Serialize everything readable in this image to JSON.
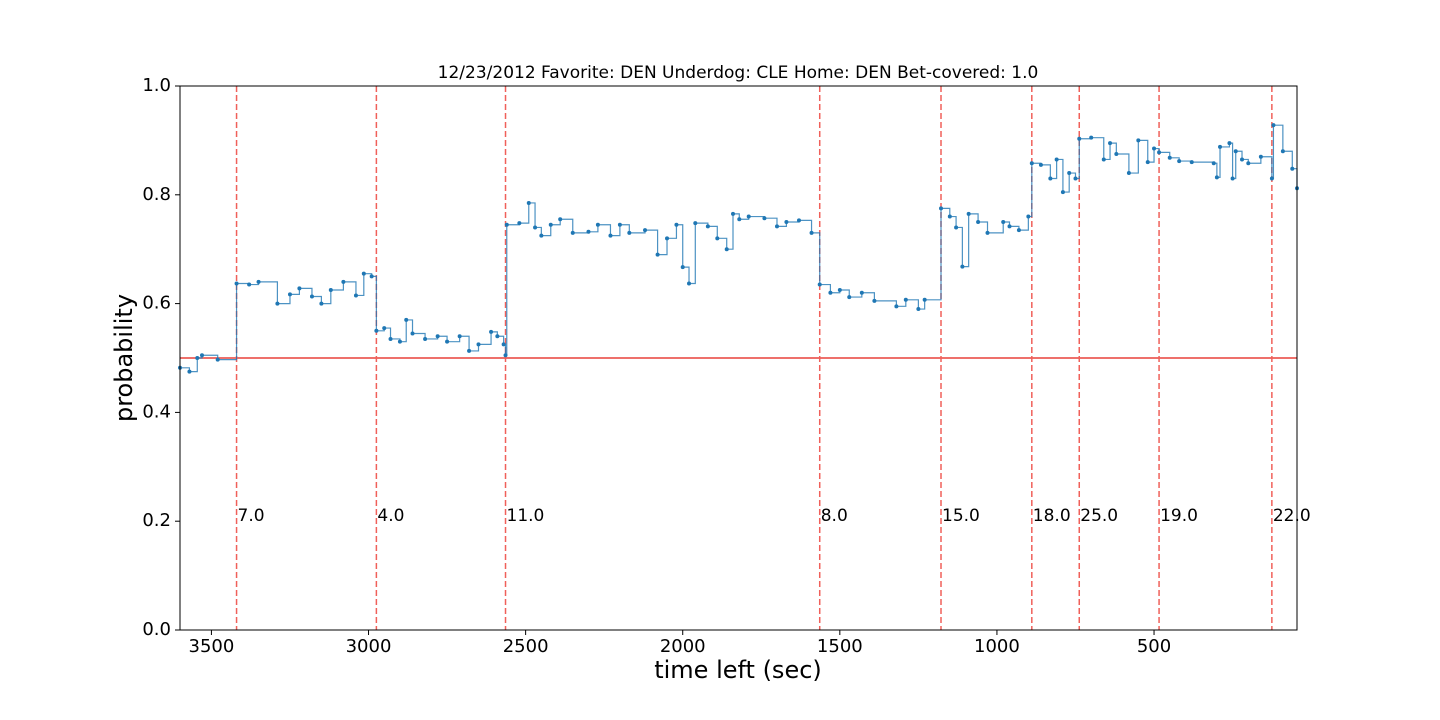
{
  "chart_data": {
    "type": "line",
    "title": "12/23/2012 Favorite: DEN Underdog: CLE Home: DEN Bet-covered: 1.0",
    "x_label": "time left (sec)",
    "y_label": "probability",
    "xlim": [
      3600,
      45
    ],
    "ylim": [
      0,
      1
    ],
    "xticks": [
      3500,
      3000,
      2500,
      2000,
      1500,
      1000,
      500
    ],
    "yticks": [
      {
        "value": 0,
        "label": "0.0"
      },
      {
        "value": 0.2,
        "label": "0.2"
      },
      {
        "value": 0.4,
        "label": "0.4"
      },
      {
        "value": 0.6,
        "label": "0.6"
      },
      {
        "value": 0.8,
        "label": "0.8"
      },
      {
        "value": 1,
        "label": "1.0"
      }
    ],
    "threshold": 0.5,
    "threshold_color": "#e8413a",
    "event_color": "#f0605a",
    "events": [
      {
        "x": 3420,
        "label": "7.0"
      },
      {
        "x": 2975,
        "label": "4.0"
      },
      {
        "x": 2564,
        "label": "11.0"
      },
      {
        "x": 1564,
        "label": "8.0"
      },
      {
        "x": 1178,
        "label": "15.0"
      },
      {
        "x": 889,
        "label": "18.0"
      },
      {
        "x": 738,
        "label": "25.0"
      },
      {
        "x": 484,
        "label": "19.0"
      },
      {
        "x": 125,
        "label": "22.0"
      }
    ],
    "series": [
      {
        "color": "#1f77b4",
        "x": [
          3600,
          3570,
          3545,
          3530,
          3480,
          3420,
          3380,
          3350,
          3290,
          3250,
          3220,
          3180,
          3150,
          3120,
          3080,
          3040,
          3015,
          2990,
          2975,
          2950,
          2930,
          2900,
          2880,
          2860,
          2820,
          2780,
          2750,
          2710,
          2680,
          2650,
          2610,
          2590,
          2570,
          2564,
          2560,
          2520,
          2490,
          2470,
          2450,
          2420,
          2390,
          2350,
          2300,
          2270,
          2230,
          2200,
          2170,
          2120,
          2080,
          2050,
          2020,
          2000,
          1980,
          1960,
          1920,
          1890,
          1860,
          1840,
          1820,
          1790,
          1740,
          1700,
          1670,
          1630,
          1590,
          1564,
          1530,
          1500,
          1470,
          1430,
          1390,
          1320,
          1290,
          1250,
          1230,
          1178,
          1150,
          1130,
          1110,
          1090,
          1060,
          1030,
          980,
          960,
          930,
          900,
          889,
          860,
          830,
          810,
          790,
          770,
          750,
          738,
          700,
          660,
          640,
          620,
          580,
          550,
          520,
          500,
          484,
          450,
          420,
          380,
          310,
          300,
          290,
          260,
          250,
          240,
          220,
          200,
          160,
          125,
          120,
          90,
          60,
          45
        ],
        "values": [
          0.482,
          0.475,
          0.5,
          0.505,
          0.497,
          0.637,
          0.635,
          0.64,
          0.6,
          0.617,
          0.628,
          0.613,
          0.6,
          0.625,
          0.64,
          0.615,
          0.655,
          0.65,
          0.55,
          0.555,
          0.535,
          0.53,
          0.57,
          0.545,
          0.535,
          0.54,
          0.53,
          0.54,
          0.513,
          0.525,
          0.548,
          0.54,
          0.525,
          0.505,
          0.745,
          0.748,
          0.785,
          0.74,
          0.725,
          0.745,
          0.755,
          0.73,
          0.732,
          0.745,
          0.725,
          0.745,
          0.73,
          0.735,
          0.69,
          0.72,
          0.745,
          0.667,
          0.637,
          0.748,
          0.742,
          0.72,
          0.7,
          0.765,
          0.755,
          0.76,
          0.757,
          0.742,
          0.75,
          0.753,
          0.73,
          0.635,
          0.62,
          0.625,
          0.612,
          0.62,
          0.605,
          0.595,
          0.607,
          0.59,
          0.607,
          0.775,
          0.76,
          0.74,
          0.668,
          0.765,
          0.75,
          0.73,
          0.75,
          0.742,
          0.735,
          0.76,
          0.858,
          0.855,
          0.83,
          0.865,
          0.805,
          0.84,
          0.83,
          0.903,
          0.905,
          0.865,
          0.895,
          0.875,
          0.84,
          0.9,
          0.86,
          0.885,
          0.878,
          0.868,
          0.862,
          0.86,
          0.858,
          0.832,
          0.888,
          0.895,
          0.83,
          0.88,
          0.865,
          0.858,
          0.87,
          0.83,
          0.928,
          0.88,
          0.848,
          0.812
        ]
      }
    ]
  }
}
